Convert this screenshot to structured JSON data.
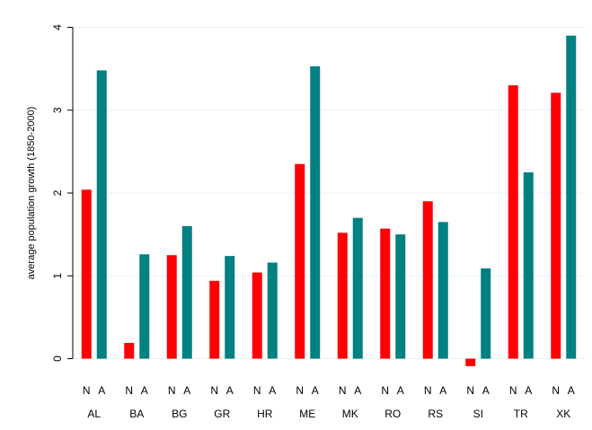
{
  "chart_data": {
    "type": "bar",
    "ylabel": "average population growth (1850-2000)",
    "ylim": [
      -0.2,
      4.2
    ],
    "yticks": [
      0,
      1,
      2,
      3,
      4
    ],
    "grid": true,
    "categories": [
      "AL",
      "BA",
      "BG",
      "GR",
      "HR",
      "ME",
      "MK",
      "RO",
      "RS",
      "SI",
      "TR",
      "XK"
    ],
    "bar_labels": [
      "N",
      "A"
    ],
    "series": [
      {
        "values": [
          2.04,
          0.19,
          1.25,
          0.94,
          1.04,
          2.35,
          1.52,
          1.57,
          1.9,
          -0.09,
          3.3,
          3.21
        ],
        "color": "#ff0000"
      },
      {
        "values": [
          3.48,
          1.26,
          1.6,
          1.24,
          1.16,
          3.53,
          1.7,
          1.5,
          1.65,
          1.09,
          2.25,
          3.9
        ],
        "color": "#008080"
      }
    ]
  }
}
